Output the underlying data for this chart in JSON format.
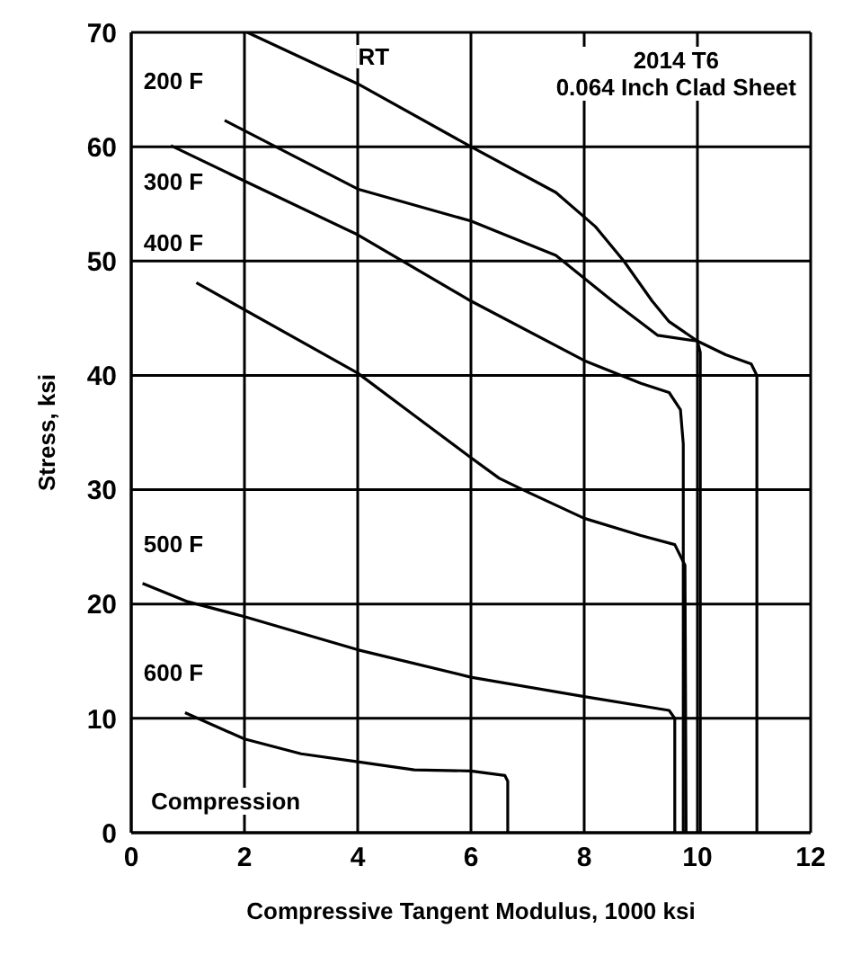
{
  "chart_data": {
    "type": "line",
    "xlabel": "Compressive Tangent Modulus, 1000 ksi",
    "ylabel": "Stress, ksi",
    "annotations": [
      "2014 T6",
      "0.064 Inch Clad Sheet",
      "Compression"
    ],
    "xlim": [
      0,
      12
    ],
    "ylim": [
      0,
      70
    ],
    "xticks": [
      0,
      2,
      4,
      6,
      8,
      10,
      12
    ],
    "yticks": [
      0,
      10,
      20,
      30,
      40,
      50,
      60,
      70
    ],
    "grid": true,
    "legend": false,
    "series": [
      {
        "name": "RT",
        "color": "#000000",
        "x": [
          2.05,
          4,
          6,
          7.5,
          8.2,
          8.7,
          9.2,
          9.5,
          10,
          10.5,
          10.95,
          11.05,
          11.05
        ],
        "values": [
          70,
          65.5,
          60,
          56,
          53,
          50,
          46.5,
          44.7,
          43,
          41.8,
          41,
          40,
          0
        ]
      },
      {
        "name": "200 F",
        "color": "#000000",
        "x": [
          1.65,
          4,
          6,
          7.5,
          8.5,
          9.3,
          10,
          10.05,
          10.05
        ],
        "values": [
          62.3,
          56.3,
          53.5,
          50.5,
          46.5,
          43.5,
          43,
          42,
          0
        ]
      },
      {
        "name": "300 F",
        "color": "#000000",
        "x": [
          0.7,
          2,
          4,
          6,
          8,
          9,
          9.5,
          9.7,
          9.75,
          9.75
        ],
        "values": [
          60.1,
          57,
          52.3,
          46.5,
          41.3,
          39.3,
          38.5,
          37,
          34,
          0
        ]
      },
      {
        "name": "400 F",
        "color": "#000000",
        "x": [
          1.15,
          4,
          5,
          6,
          6.5,
          7,
          8,
          9,
          9.6,
          9.78,
          9.8
        ],
        "values": [
          48.1,
          40.2,
          36.5,
          32.8,
          31,
          29.8,
          27.5,
          26,
          25.2,
          23.4,
          0
        ]
      },
      {
        "name": "500 F",
        "color": "#000000",
        "x": [
          0.2,
          1,
          2,
          4,
          6,
          8,
          9.5,
          9.6,
          9.6
        ],
        "values": [
          21.8,
          20.2,
          18.9,
          16,
          13.6,
          11.9,
          10.7,
          10,
          0
        ]
      },
      {
        "name": "600 F",
        "color": "#000000",
        "x": [
          0.95,
          2,
          3,
          4,
          5,
          6,
          6.6,
          6.65,
          6.65
        ],
        "values": [
          10.5,
          8.2,
          6.9,
          6.2,
          5.5,
          5.4,
          5,
          4.5,
          0
        ]
      }
    ]
  }
}
